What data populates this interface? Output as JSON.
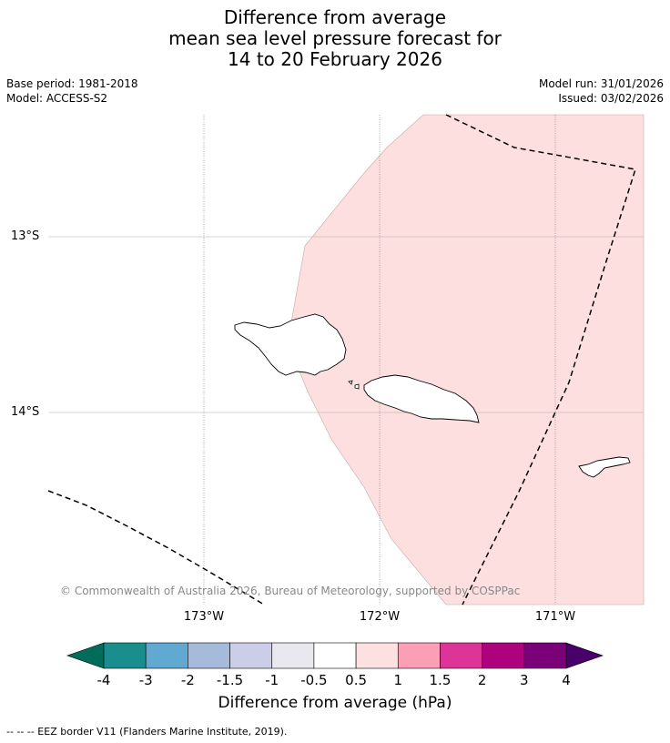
{
  "title": {
    "line1": "Difference from average",
    "line2": "mean sea level pressure forecast for",
    "line3": "14 to 20 February 2026"
  },
  "meta": {
    "base_period": "Base period: 1981-2018",
    "model": "Model: ACCESS-S2",
    "model_run": "Model run: 31/01/2026",
    "issued": "Issued: 03/02/2026"
  },
  "map": {
    "lat_labels": [
      "13°S",
      "14°S"
    ],
    "lon_labels": [
      "173°W",
      "172°W",
      "171°W"
    ],
    "copyright": "© Commonwealth of Australia 2026, Bureau of Meteorology, supported by COSPPac",
    "colors": {
      "anomaly_fill": "#fddfdf",
      "gridline": "#aaaaaa",
      "coast": "#000000",
      "eez": "#000000"
    }
  },
  "colorbar": {
    "label": "Difference from average (hPa)",
    "ticks": [
      "-4",
      "-3",
      "-2",
      "-1.5",
      "-1",
      "-0.5",
      "0.5",
      "1",
      "1.5",
      "2",
      "3",
      "4"
    ],
    "colors": [
      "#1a8e8e",
      "#62a9d2",
      "#a6bbdb",
      "#cccde6",
      "#eae8ef",
      "#ffffff",
      "#fde0e1",
      "#fa9fb6",
      "#dd3497",
      "#ad017e",
      "#7a0177"
    ],
    "under_color": "#016c59",
    "over_color": "#49006a"
  },
  "footnote": "--  --  -- EEZ border V11 (Flanders Marine Institute, 2019)."
}
